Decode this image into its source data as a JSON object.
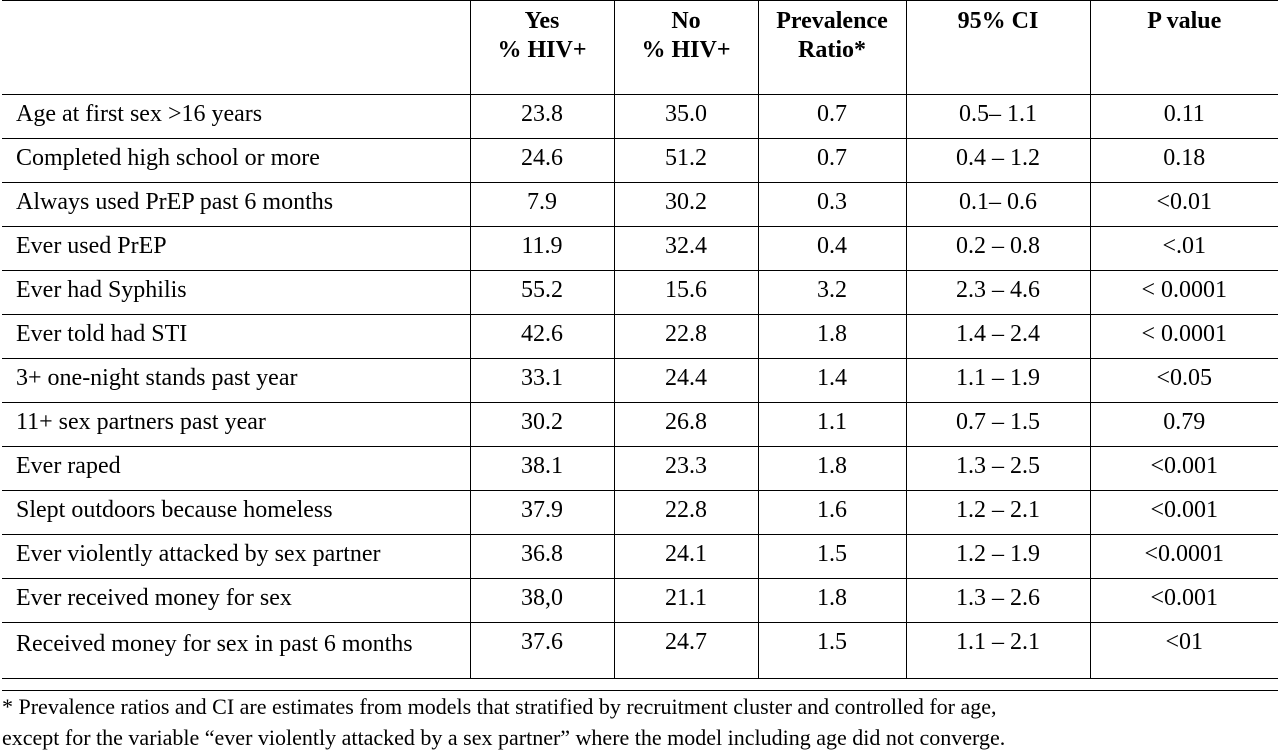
{
  "table": {
    "headers": [
      {
        "line1": "",
        "line2": ""
      },
      {
        "line1": "Yes",
        "line2": "% HIV+"
      },
      {
        "line1": "No",
        "line2": "% HIV+"
      },
      {
        "line1": "Prevalence",
        "line2": "Ratio*"
      },
      {
        "line1": "95% CI",
        "line2": ""
      },
      {
        "line1": "P value",
        "line2": ""
      }
    ],
    "rows": [
      {
        "variable": "Age at first sex >16 years",
        "yes": "23.8",
        "no": "35.0",
        "pr": "0.7",
        "ci": "0.5– 1.1",
        "p": "0.11"
      },
      {
        "variable": "Completed high school or more",
        "yes": "24.6",
        "no": "51.2",
        "pr": "0.7",
        "ci": "0.4 – 1.2",
        "p": "0.18"
      },
      {
        "variable": "Always used PrEP past 6 months",
        "yes": "7.9",
        "no": "30.2",
        "pr": "0.3",
        "ci": "0.1– 0.6",
        "p": "<0.01"
      },
      {
        "variable": "Ever used PrEP",
        "yes": "11.9",
        "no": "32.4",
        "pr": "0.4",
        "ci": "0.2 – 0.8",
        "p": "<.01"
      },
      {
        "variable": "Ever had Syphilis",
        "yes": "55.2",
        "no": "15.6",
        "pr": "3.2",
        "ci": "2.3 – 4.6",
        "p": "< 0.0001"
      },
      {
        "variable": "Ever told had STI",
        "yes": "42.6",
        "no": "22.8",
        "pr": "1.8",
        "ci": "1.4 – 2.4",
        "p": "< 0.0001"
      },
      {
        "variable": "3+ one-night stands past year",
        "yes": "33.1",
        "no": "24.4",
        "pr": "1.4",
        "ci": "1.1 – 1.9",
        "p": "<0.05"
      },
      {
        "variable": "11+ sex partners past year",
        "yes": "30.2",
        "no": "26.8",
        "pr": "1.1",
        "ci": "0.7 – 1.5",
        "p": "0.79"
      },
      {
        "variable": "Ever raped",
        "yes": "38.1",
        "no": "23.3",
        "pr": "1.8",
        "ci": "1.3 – 2.5",
        "p": "<0.001"
      },
      {
        "variable": "Slept outdoors because homeless",
        "yes": "37.9",
        "no": "22.8",
        "pr": "1.6",
        "ci": "1.2 – 2.1",
        "p": "<0.001"
      },
      {
        "variable": "Ever violently attacked by sex partner",
        "yes": "36.8",
        "no": "24.1",
        "pr": "1.5",
        "ci": "1.2 – 1.9",
        "p": "<0.0001"
      },
      {
        "variable": "Ever received money for sex",
        "yes": "38,0",
        "no": "21.1",
        "pr": "1.8",
        "ci": "1.3 – 2.6",
        "p": "<0.001"
      },
      {
        "variable": "Received money for sex in past 6 months",
        "yes": "37.6",
        "no": "24.7",
        "pr": "1.5",
        "ci": "1.1 – 2.1",
        "p": "<01"
      }
    ]
  },
  "footnote": {
    "line1": "* Prevalence ratios and CI are estimates from models that stratified by recruitment cluster and controlled for age,",
    "line2": "except for the variable “ever violently attacked by a sex partner” where the model including age did not converge."
  }
}
